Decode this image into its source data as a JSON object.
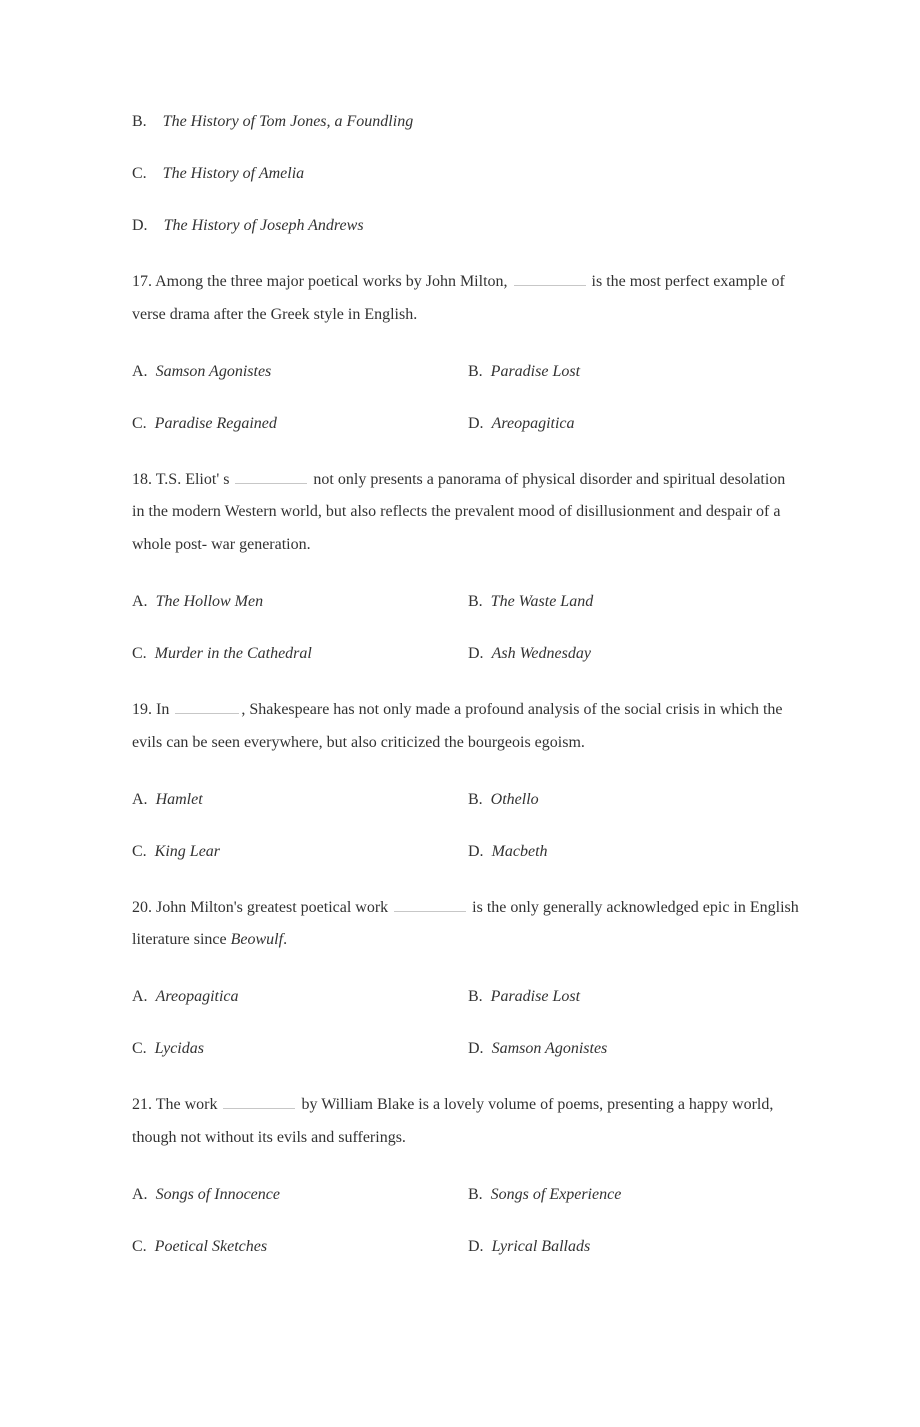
{
  "colors": {
    "text": "#323232",
    "blank_line": "#c7c7c7",
    "background": "#ffffff"
  },
  "typography": {
    "font_family": "Times New Roman",
    "font_size_pt": 12,
    "line_height_question": 2.05
  },
  "partial_options": [
    {
      "letter": "B.",
      "text": "The History of Tom Jones, a Foundling"
    },
    {
      "letter": "C.",
      "text": "The History of Amelia"
    },
    {
      "letter": "D.",
      "text": "The History of Joseph Andrews"
    }
  ],
  "questions": [
    {
      "num": "17.",
      "pre": "Among the three major poetical works by John Milton, ",
      "post": " is the most perfect  example of verse drama after the Greek style in English.",
      "opts": {
        "A": {
          "letter": "A.",
          "text": "Samson  Agonistes"
        },
        "B": {
          "letter": "B.",
          "text": "Paradise Lost"
        },
        "C": {
          "letter": "C.",
          "text": "Paradise Regained"
        },
        "D": {
          "letter": "D.",
          "text": "Areopagitica"
        }
      }
    },
    {
      "num": "18.",
      "pre": "T.S. Eliot' s  ",
      "post": "  not only presents a panorama of physical disorder and spiritual desolation in the modern Western world, but also reflects the prevalent mood of disillusionment and despair of a whole post- war generation.",
      "opts": {
        "A": {
          "letter": "A.",
          "text": "The Hollow Men"
        },
        "B": {
          "letter": "B.",
          "text": "The Waste Land"
        },
        "C": {
          "letter": "C.",
          "text": "Murder in the Cathedral"
        },
        "D": {
          "letter": "D.",
          "text": "Ash Wednesday"
        }
      }
    },
    {
      "num": "19.",
      "pre": "In  ",
      "post": ", Shakespeare has not only made a profound analysis of the social crisis in  which the evils can be seen everywhere, but also criticized the bourgeois egoism.",
      "opts": {
        "A": {
          "letter": "A.",
          "text": "Hamlet"
        },
        "B": {
          "letter": "B.",
          "text": "Othello"
        },
        "C": {
          "letter": "C.",
          "text": "King Lear"
        },
        "D": {
          "letter": "D.",
          "text": "Macbeth"
        }
      }
    },
    {
      "num": "20.",
      "pre": "John Milton's greatest poetical work  ",
      "post": "  is the only generally acknowledged epic  in English literature since  ",
      "tail_italic": "Beowulf",
      "tail_after": ".",
      "opts": {
        "A": {
          "letter": "A.",
          "text": "Areopagitica"
        },
        "B": {
          "letter": "B.",
          "text": "Paradise Lost"
        },
        "C": {
          "letter": "C.",
          "text": "Lycidas"
        },
        "D": {
          "letter": "D.",
          "text": "Samson Agonistes"
        }
      }
    },
    {
      "num": "21.",
      "pre": "The work ",
      "post": " by William Blake is a lovely volume of poems, presenting a happy world, though not without its evils and sufferings.",
      "opts": {
        "A": {
          "letter": "A.",
          "text": "Songs of Innocence"
        },
        "B": {
          "letter": "B.",
          "text": "Songs of Experience"
        },
        "C": {
          "letter": "C.",
          "text": "Poetical Sketches"
        },
        "D": {
          "letter": "D.",
          "text": "Lyrical Ballads"
        }
      }
    }
  ]
}
